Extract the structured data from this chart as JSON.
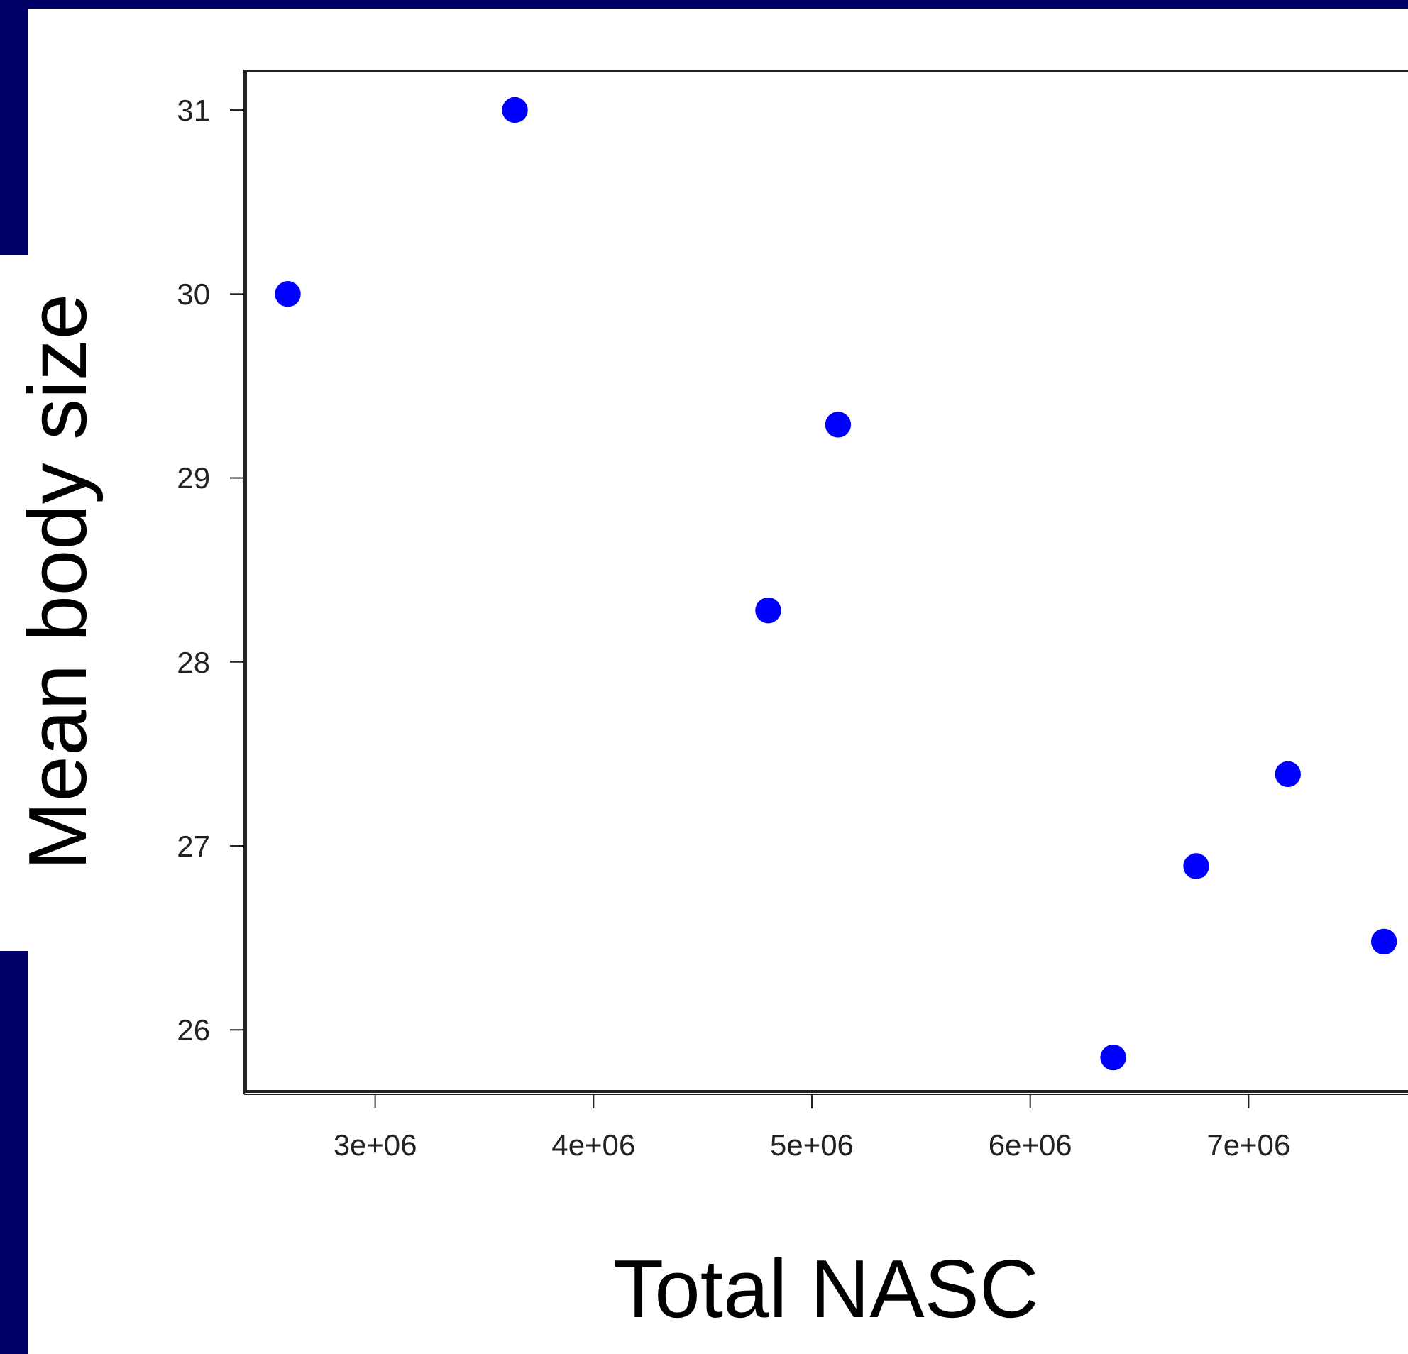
{
  "chart_data": {
    "type": "scatter",
    "xlabel": "Total NASC",
    "ylabel": "Mean body size",
    "x": [
      2600000,
      3640000,
      4800000,
      5120000,
      6380000,
      6760000,
      7180000,
      7620000
    ],
    "values": [
      30.0,
      31.0,
      28.28,
      29.29,
      25.85,
      26.89,
      27.39,
      26.48
    ],
    "color": "#0000ff",
    "marker": "circle",
    "xlim": [
      2400000,
      7730000
    ],
    "xticks": [
      {
        "value": 3000000,
        "label": "3e+06"
      },
      {
        "value": 4000000,
        "label": "4e+06"
      },
      {
        "value": 5000000,
        "label": "5e+06"
      },
      {
        "value": 6000000,
        "label": "6e+06"
      },
      {
        "value": 7000000,
        "label": "7e+06"
      }
    ],
    "ylim": [
      25.65,
      31.22
    ],
    "yticks": [
      26,
      27,
      28,
      29,
      30,
      31
    ],
    "grid": false,
    "legend": false
  }
}
